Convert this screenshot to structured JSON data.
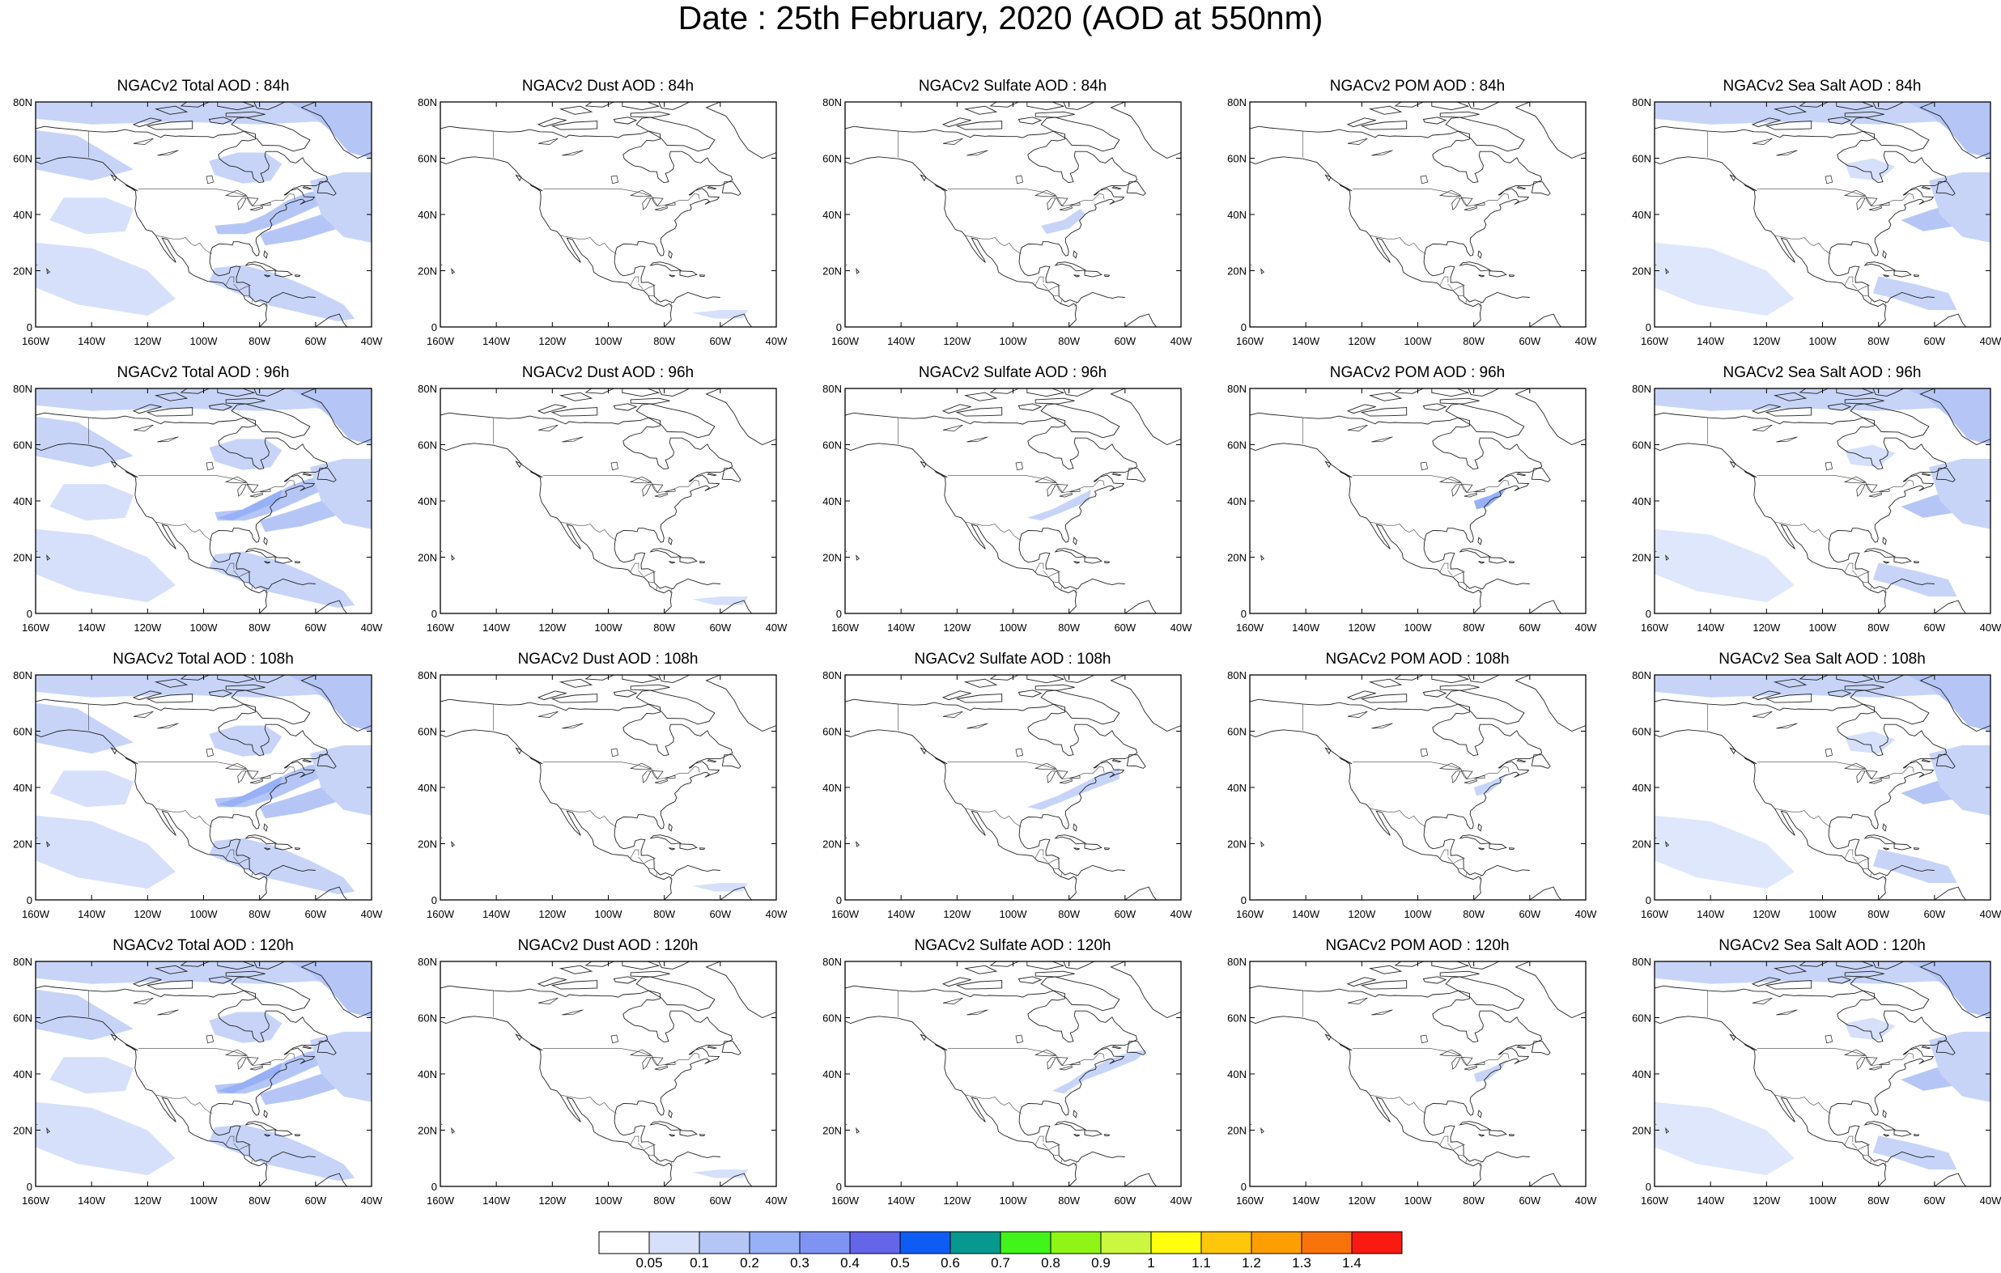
{
  "title": "Date : 25th February, 2020 (AOD at 550nm)",
  "axes": {
    "lat_ticks": [
      "80N",
      "60N",
      "40N",
      "20N",
      "0"
    ],
    "lon_ticks": [
      "160W",
      "140W",
      "120W",
      "100W",
      "80W",
      "60W",
      "40W"
    ]
  },
  "panels": [
    {
      "title": "NGACv2 Total AOD : 84h",
      "species": "total"
    },
    {
      "title": "NGACv2 Dust AOD : 84h",
      "species": "dust"
    },
    {
      "title": "NGACv2 Sulfate AOD : 84h",
      "species": "sulfate"
    },
    {
      "title": "NGACv2 POM AOD : 84h",
      "species": "pom"
    },
    {
      "title": "NGACv2 Sea Salt AOD : 84h",
      "species": "seasalt"
    },
    {
      "title": "NGACv2 Total AOD : 96h",
      "species": "total"
    },
    {
      "title": "NGACv2 Dust AOD : 96h",
      "species": "dust"
    },
    {
      "title": "NGACv2 Sulfate AOD : 96h",
      "species": "sulfate"
    },
    {
      "title": "NGACv2 POM AOD : 96h",
      "species": "pom"
    },
    {
      "title": "NGACv2 Sea Salt AOD : 96h",
      "species": "seasalt"
    },
    {
      "title": "NGACv2 Total AOD : 108h",
      "species": "total"
    },
    {
      "title": "NGACv2 Dust AOD : 108h",
      "species": "dust"
    },
    {
      "title": "NGACv2 Sulfate AOD : 108h",
      "species": "sulfate"
    },
    {
      "title": "NGACv2 POM AOD : 108h",
      "species": "pom"
    },
    {
      "title": "NGACv2 Sea Salt AOD : 108h",
      "species": "seasalt"
    },
    {
      "title": "NGACv2 Total AOD : 120h",
      "species": "total"
    },
    {
      "title": "NGACv2 Dust AOD : 120h",
      "species": "dust"
    },
    {
      "title": "NGACv2 Sulfate AOD : 120h",
      "species": "sulfate"
    },
    {
      "title": "NGACv2 POM AOD : 120h",
      "species": "pom"
    },
    {
      "title": "NGACv2 Sea Salt  AOD : 120h",
      "species": "seasalt"
    }
  ],
  "colorbar": {
    "labels": [
      "0.05",
      "0.1",
      "0.2",
      "0.3",
      "0.4",
      "0.5",
      "0.6",
      "0.7",
      "0.8",
      "0.9",
      "1",
      "1.1",
      "1.2",
      "1.3",
      "1.4"
    ],
    "colors": [
      "#ffffff",
      "#d6e0fb",
      "#b5c6f6",
      "#97b0f6",
      "#7f94f2",
      "#6565ea",
      "#0f5cf4",
      "#07988f",
      "#41f51a",
      "#8ff517",
      "#cbf740",
      "#fffe0d",
      "#fec70c",
      "#fd9f02",
      "#f8730a",
      "#f91a12"
    ]
  }
}
